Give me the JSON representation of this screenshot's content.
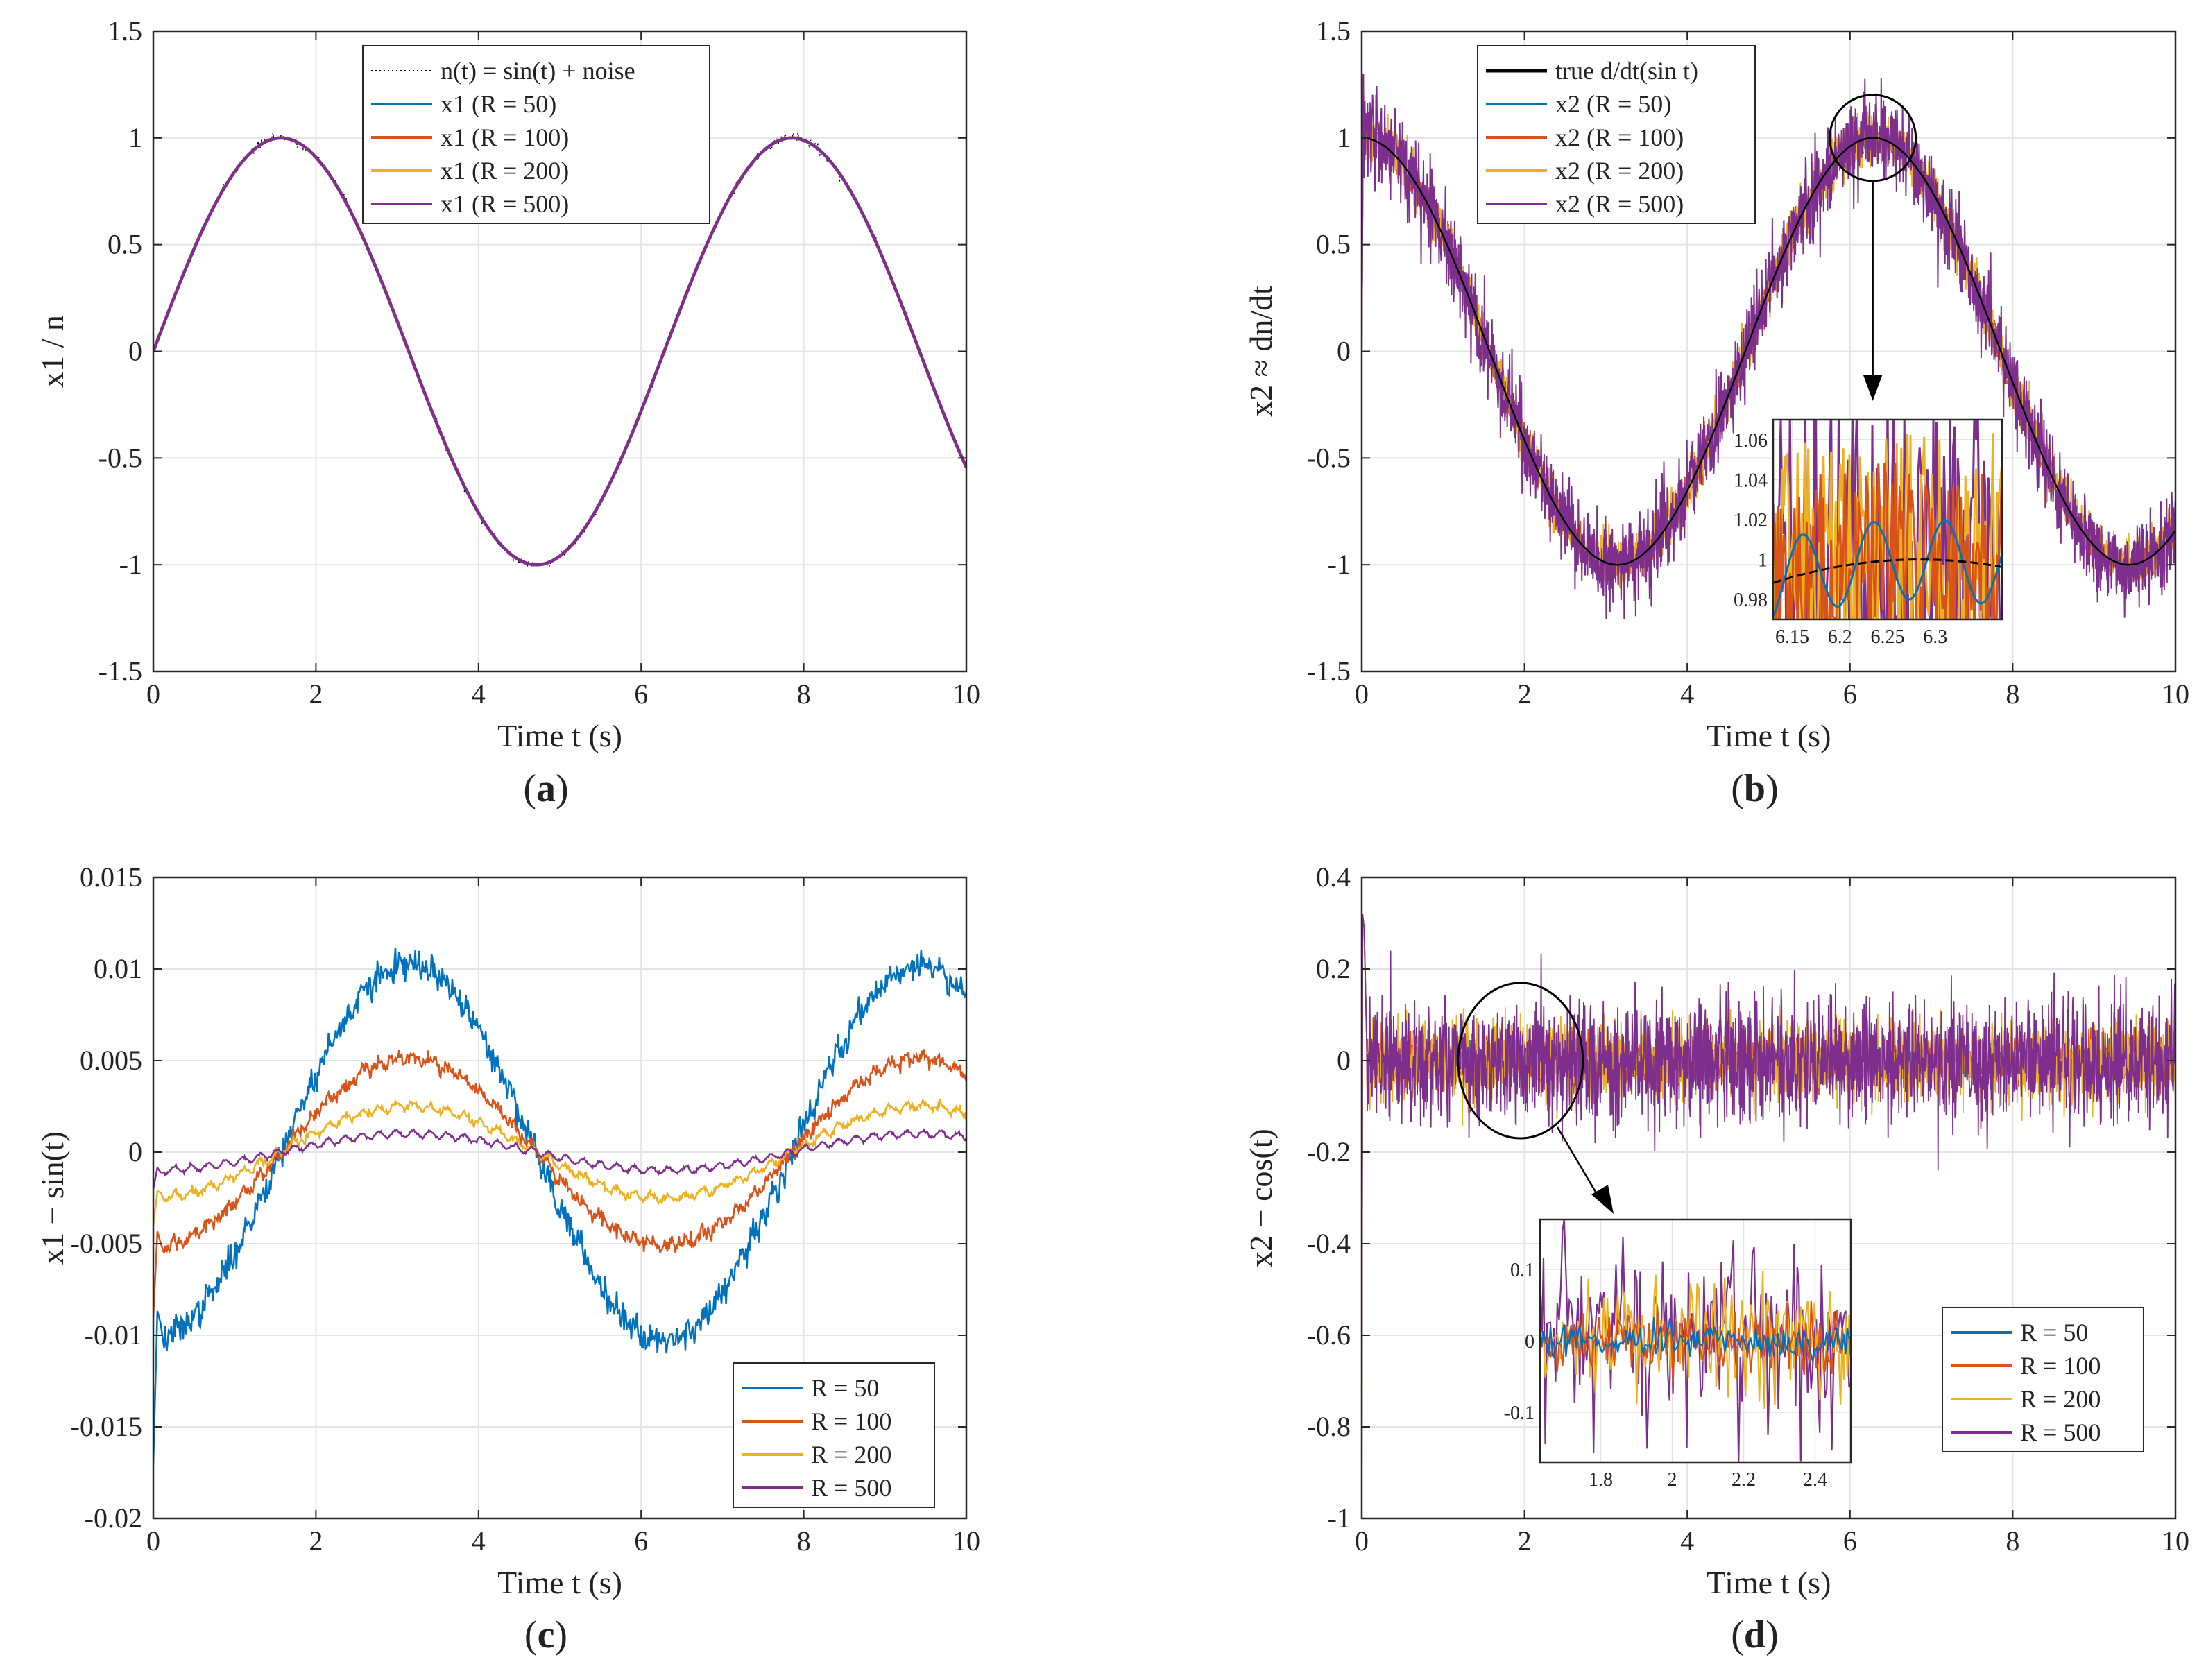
{
  "colors": {
    "blue": "#0072BD",
    "orange": "#D95319",
    "yellow": "#EDB120",
    "purple": "#7E2F8E",
    "black": "#000000",
    "grid": "#e4e4e4",
    "axis": "#262626"
  },
  "chart_data": [
    {
      "id": "a",
      "type": "line",
      "caption": "(a)",
      "caption_letter": "a",
      "xlabel": "Time t (s)",
      "ylabel": "x1 / n",
      "xlim": [
        0,
        10
      ],
      "ylim": [
        -1.5,
        1.5
      ],
      "xticks": [
        0,
        2,
        4,
        6,
        8,
        10
      ],
      "xtick_labels": [
        "0",
        "2",
        "4",
        "6",
        "8",
        "10"
      ],
      "yticks": [
        -1.5,
        -1,
        -0.5,
        0,
        0.5,
        1,
        1.5
      ],
      "ytick_labels": [
        "-1.5",
        "-1",
        "-0.5",
        "0",
        "0.5",
        "1",
        "1.5"
      ],
      "legend_position": "top-center",
      "series": [
        {
          "name": "n(t) = sin(t) + noise",
          "style": "dotted",
          "color": "black",
          "function": "sin(t) + noise",
          "noise_amplitude": 0.01
        },
        {
          "name": "x1 (R = 50)",
          "color": "blue",
          "function": "sin(t)"
        },
        {
          "name": "x1 (R = 100)",
          "color": "orange",
          "function": "sin(t)"
        },
        {
          "name": "x1 (R = 200)",
          "color": "yellow",
          "function": "sin(t)"
        },
        {
          "name": "x1 (R = 500)",
          "color": "purple",
          "function": "sin(t)"
        }
      ]
    },
    {
      "id": "b",
      "type": "line",
      "caption": "(b)",
      "caption_letter": "b",
      "xlabel": "Time t (s)",
      "ylabel": "x2 ≈ dn/dt",
      "xlim": [
        0,
        10
      ],
      "ylim": [
        -1.5,
        1.5
      ],
      "xticks": [
        0,
        2,
        4,
        6,
        8,
        10
      ],
      "xtick_labels": [
        "0",
        "2",
        "4",
        "6",
        "8",
        "10"
      ],
      "yticks": [
        -1.5,
        -1,
        -0.5,
        0,
        0.5,
        1,
        1.5
      ],
      "ytick_labels": [
        "-1.5",
        "-1",
        "-0.5",
        "0",
        "0.5",
        "1",
        "1.5"
      ],
      "legend_position": "top-left",
      "series": [
        {
          "name": "true d/dt(sin t)",
          "color": "black",
          "function": "cos(t)"
        },
        {
          "name": "x2 (R = 50)",
          "color": "blue",
          "function": "cos(t) + noise",
          "noise_amplitude": 0.02
        },
        {
          "name": "x2 (R = 100)",
          "color": "orange",
          "function": "cos(t) + noise",
          "noise_amplitude": 0.04
        },
        {
          "name": "x2 (R = 200)",
          "color": "yellow",
          "function": "cos(t) + noise",
          "noise_amplitude": 0.06
        },
        {
          "name": "x2 (R = 500)",
          "color": "purple",
          "function": "cos(t) + noise",
          "noise_amplitude": 0.1
        }
      ],
      "highlight": {
        "center": [
          6.28,
          1.0
        ],
        "note": "zoom region near t = 6.28"
      },
      "inset": {
        "xlim": [
          6.13,
          6.37
        ],
        "ylim": [
          0.97,
          1.07
        ],
        "xticks": [
          6.15,
          6.2,
          6.25,
          6.3
        ],
        "xtick_labels": [
          "6.15",
          "6.2",
          "6.25",
          "6.3"
        ],
        "yticks": [
          0.98,
          1.0,
          1.02,
          1.04,
          1.06
        ],
        "ytick_labels": [
          "0.98",
          "1",
          "1.02",
          "1.04",
          "1.06"
        ]
      }
    },
    {
      "id": "c",
      "type": "line",
      "caption": "(c)",
      "caption_letter": "c",
      "xlabel": "Time t (s)",
      "ylabel": "x1 − sin(t)",
      "xlim": [
        0,
        10
      ],
      "ylim": [
        -0.02,
        0.015
      ],
      "xticks": [
        0,
        2,
        4,
        6,
        8,
        10
      ],
      "xtick_labels": [
        "0",
        "2",
        "4",
        "6",
        "8",
        "10"
      ],
      "yticks": [
        -0.02,
        -0.015,
        -0.01,
        -0.005,
        0,
        0.005,
        0.01,
        0.015
      ],
      "ytick_labels": [
        "-0.02",
        "-0.015",
        "-0.01",
        "-0.005",
        "0",
        "0.005",
        "0.01",
        "0.015"
      ],
      "legend_position": "bottom-right",
      "series": [
        {
          "name": "R = 50",
          "color": "blue",
          "amplitude": 0.0102,
          "function": "-A cos(t)",
          "initial_transient": -0.017
        },
        {
          "name": "R = 100",
          "color": "orange",
          "amplitude": 0.0051,
          "function": "-A cos(t)",
          "initial_transient": -0.009
        },
        {
          "name": "R = 200",
          "color": "yellow",
          "amplitude": 0.0025,
          "function": "-A cos(t)",
          "initial_transient": -0.004
        },
        {
          "name": "R = 500",
          "color": "purple",
          "amplitude": 0.001,
          "function": "-A cos(t)",
          "initial_transient": -0.002
        }
      ]
    },
    {
      "id": "d",
      "type": "line",
      "caption": "(d)",
      "caption_letter": "d",
      "xlabel": "Time t (s)",
      "ylabel": "x2 − cos(t)",
      "xlim": [
        0,
        10
      ],
      "ylim": [
        -1,
        0.4
      ],
      "xticks": [
        0,
        2,
        4,
        6,
        8,
        10
      ],
      "xtick_labels": [
        "0",
        "2",
        "4",
        "6",
        "8",
        "10"
      ],
      "yticks": [
        -1,
        -0.8,
        -0.6,
        -0.4,
        -0.2,
        0,
        0.2,
        0.4
      ],
      "ytick_labels": [
        "-1",
        "-0.8",
        "-0.6",
        "-0.4",
        "-0.2",
        "0",
        "0.2",
        "0.4"
      ],
      "legend_position": "lower-right",
      "series": [
        {
          "name": "R = 50",
          "color": "blue",
          "noise_amplitude": 0.03,
          "initial_transient": [
            0.32,
            -1.0
          ]
        },
        {
          "name": "R = 100",
          "color": "orange",
          "noise_amplitude": 0.05,
          "initial_transient": [
            0.32,
            -1.0
          ]
        },
        {
          "name": "R = 200",
          "color": "yellow",
          "noise_amplitude": 0.08,
          "initial_transient": [
            0.3,
            -1.0
          ]
        },
        {
          "name": "R = 500",
          "color": "purple",
          "noise_amplitude": 0.12,
          "initial_transient": [
            0.32,
            -1.0
          ]
        }
      ],
      "highlight": {
        "center": [
          1.95,
          0.0
        ],
        "note": "zoom region near t = 2"
      },
      "inset": {
        "xlim": [
          1.63,
          2.5
        ],
        "ylim": [
          -0.17,
          0.17
        ],
        "xticks": [
          1.8,
          2.0,
          2.2,
          2.4
        ],
        "xtick_labels": [
          "1.8",
          "2",
          "2.2",
          "2.4"
        ],
        "yticks": [
          -0.1,
          0,
          0.1
        ],
        "ytick_labels": [
          "-0.1",
          "0",
          "0.1"
        ]
      }
    }
  ]
}
